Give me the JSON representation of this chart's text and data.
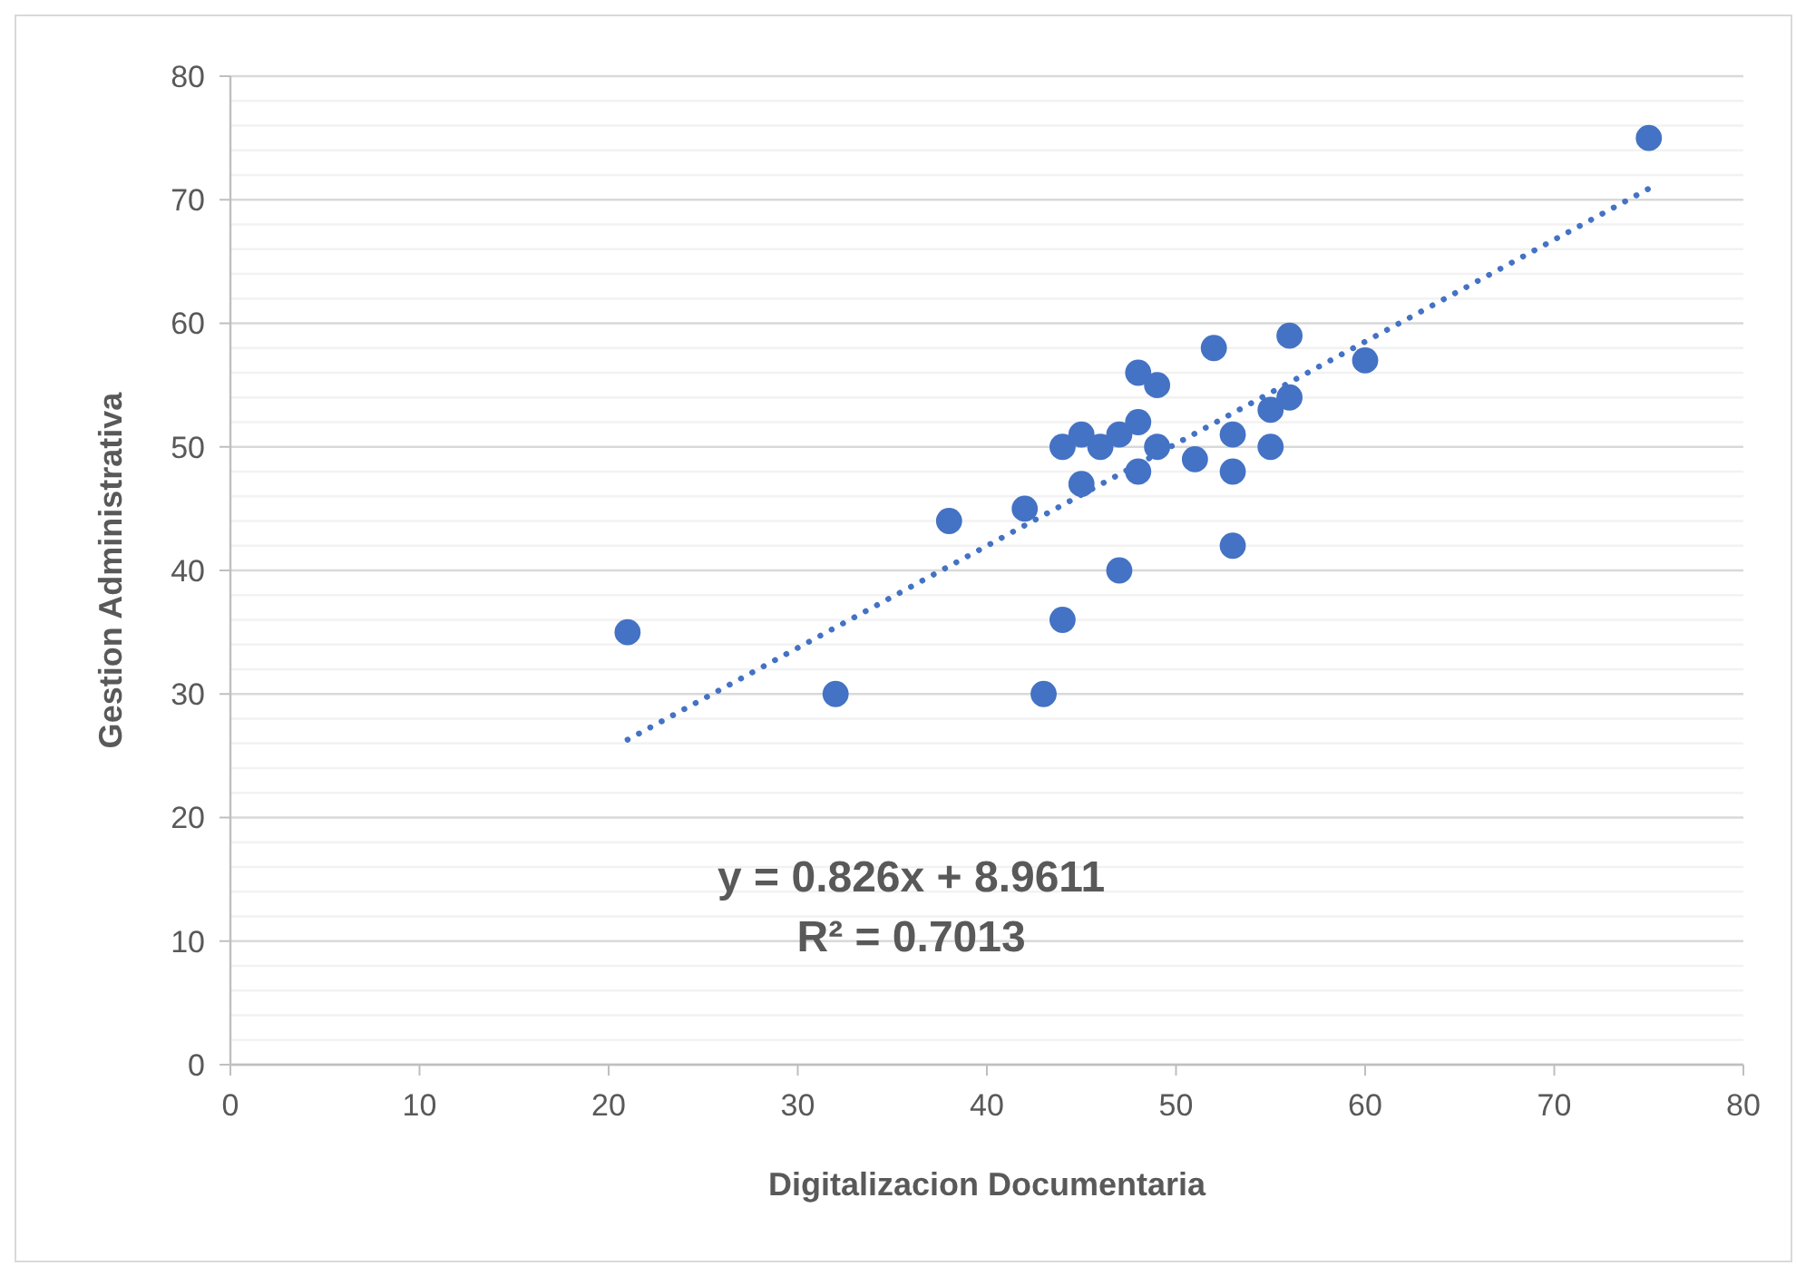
{
  "chart_data": {
    "type": "scatter",
    "xlabel": "Digitalizacion Documentaria",
    "ylabel": "Gestion Administrativa",
    "xlim": [
      0,
      80
    ],
    "ylim": [
      0,
      80
    ],
    "xticks": [
      0,
      10,
      20,
      30,
      40,
      50,
      60,
      70,
      80
    ],
    "yticks": [
      0,
      {
        "value": 2,
        "label": null
      },
      {
        "value": 4,
        "label": null
      },
      {
        "value": 6,
        "label": null
      },
      {
        "value": 8,
        "label": null
      },
      10,
      {
        "value": 12,
        "label": null
      },
      {
        "value": 14,
        "label": null
      },
      {
        "value": 16,
        "label": null
      },
      {
        "value": 18,
        "label": null
      },
      20,
      {
        "value": 22,
        "label": null
      },
      {
        "value": 24,
        "label": null
      },
      {
        "value": 26,
        "label": null
      },
      {
        "value": 28,
        "label": null
      },
      30,
      {
        "value": 32,
        "label": null
      },
      {
        "value": 34,
        "label": null
      },
      {
        "value": 36,
        "label": null
      },
      {
        "value": 38,
        "label": null
      },
      40,
      {
        "value": 42,
        "label": null
      },
      {
        "value": 44,
        "label": null
      },
      {
        "value": 46,
        "label": null
      },
      {
        "value": 48,
        "label": null
      },
      50,
      {
        "value": 52,
        "label": null
      },
      {
        "value": 54,
        "label": null
      },
      {
        "value": 56,
        "label": null
      },
      {
        "value": 58,
        "label": null
      },
      60,
      {
        "value": 62,
        "label": null
      },
      {
        "value": 64,
        "label": null
      },
      {
        "value": 66,
        "label": null
      },
      {
        "value": 68,
        "label": null
      },
      70,
      {
        "value": 72,
        "label": null
      },
      {
        "value": 74,
        "label": null
      },
      {
        "value": 76,
        "label": null
      },
      {
        "value": 78,
        "label": null
      },
      80
    ],
    "grid": "y",
    "marker": "circle",
    "series": [
      {
        "color": "#4472c4",
        "x": [
          21,
          32,
          38,
          42,
          43,
          44,
          44,
          45,
          45,
          46,
          47,
          47,
          48,
          48,
          48,
          49,
          49,
          51,
          52,
          53,
          53,
          53,
          55,
          55,
          56,
          56,
          60,
          75
        ],
        "values": [
          35,
          30,
          44,
          45,
          30,
          36,
          50,
          51,
          47,
          50,
          51,
          40,
          56,
          52,
          48,
          55,
          50,
          49,
          58,
          51,
          48,
          42,
          53,
          50,
          59,
          54,
          57,
          75
        ]
      },
      {
        "type": "line",
        "color": "#4472c4",
        "line_style": "dotted",
        "marker": "none",
        "x": [
          21,
          75
        ],
        "values": [
          26.3,
          70.9
        ]
      }
    ],
    "annotations": [
      "y = 0.826x + 8.9611",
      "R² = 0.7013"
    ]
  }
}
